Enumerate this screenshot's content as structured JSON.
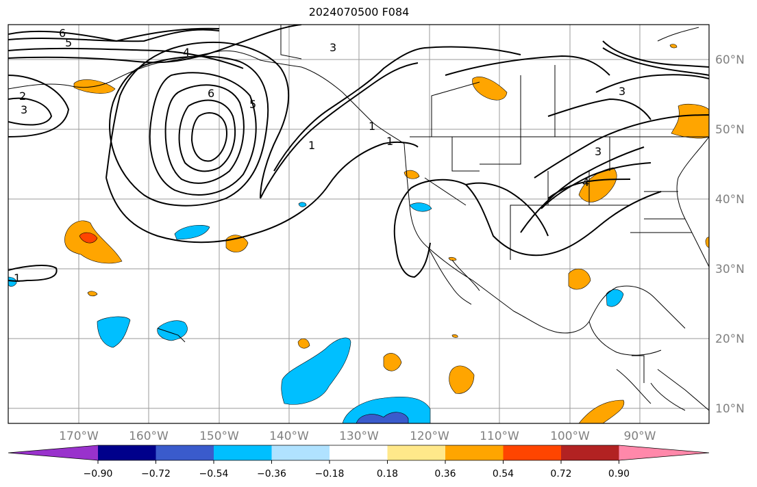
{
  "title": "2024070500 F084",
  "map": {
    "lat_labels": [
      "60°N",
      "50°N",
      "40°N",
      "30°N",
      "20°N",
      "10°N"
    ],
    "lon_labels": [
      "170°W",
      "160°W",
      "150°W",
      "140°W",
      "130°W",
      "120°W",
      "110°W",
      "100°W",
      "90°W"
    ],
    "contour_labels": [
      "6",
      "5",
      "4",
      "3",
      "2",
      "3",
      "6",
      "5",
      "1",
      "1",
      "3",
      "3",
      "4",
      "1",
      "1"
    ]
  },
  "colorbar": {
    "ticks": [
      "−0.90",
      "−0.72",
      "−0.54",
      "−0.36",
      "−0.18",
      "0.18",
      "0.36",
      "0.54",
      "0.72",
      "0.90"
    ],
    "colors": [
      "#9932cc",
      "#00008b",
      "#3a5bcc",
      "#00bfff",
      "#b0e2ff",
      "#ffffff",
      "#ffe88a",
      "#ffa500",
      "#ff4500",
      "#b22222",
      "#ff88aa"
    ]
  }
}
